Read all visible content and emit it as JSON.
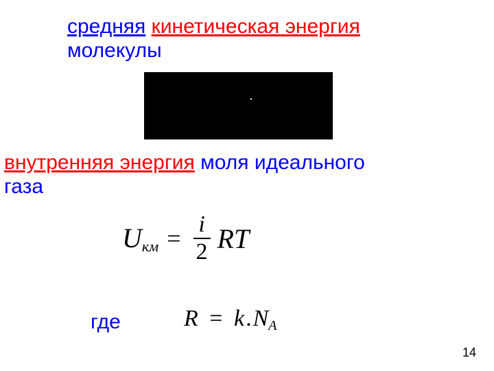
{
  "heading1": {
    "word1": "средняя",
    "word2": "кинетическая энергия",
    "line2": "молекулы"
  },
  "heading2": {
    "word1": " ",
    "word2": "внутренняя энергия",
    "word3": " моля идеального",
    "line2": "газа"
  },
  "formula1": {
    "U": "U",
    "sub": "км",
    "eq": "=",
    "num": "i",
    "den": "2",
    "rhs": "RT"
  },
  "where": "где",
  "formula2": {
    "R": "R",
    "eq": "=",
    "k": "k",
    "dot": ".",
    "N": "N",
    "sub": "A"
  },
  "pageNumber": "14"
}
